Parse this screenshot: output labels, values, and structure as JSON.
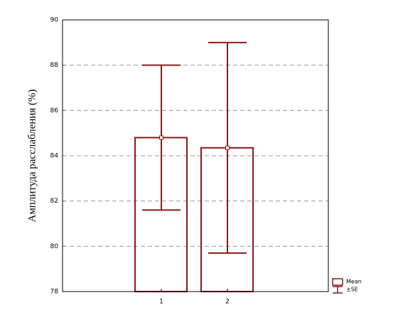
{
  "chart_data": {
    "type": "bar",
    "y_label": "Амплитуда расслабления (%)",
    "categories": [
      "1",
      "2"
    ],
    "series": [
      {
        "name": "Mean",
        "error_name": "±SE",
        "color": "#8b1a1a",
        "values": [
          84.8,
          84.35
        ],
        "errors": [
          3.2,
          4.65
        ]
      }
    ],
    "ylim": [
      78,
      90
    ],
    "yticks": [
      78,
      80,
      82,
      84,
      86,
      88,
      90
    ],
    "grid": true
  }
}
